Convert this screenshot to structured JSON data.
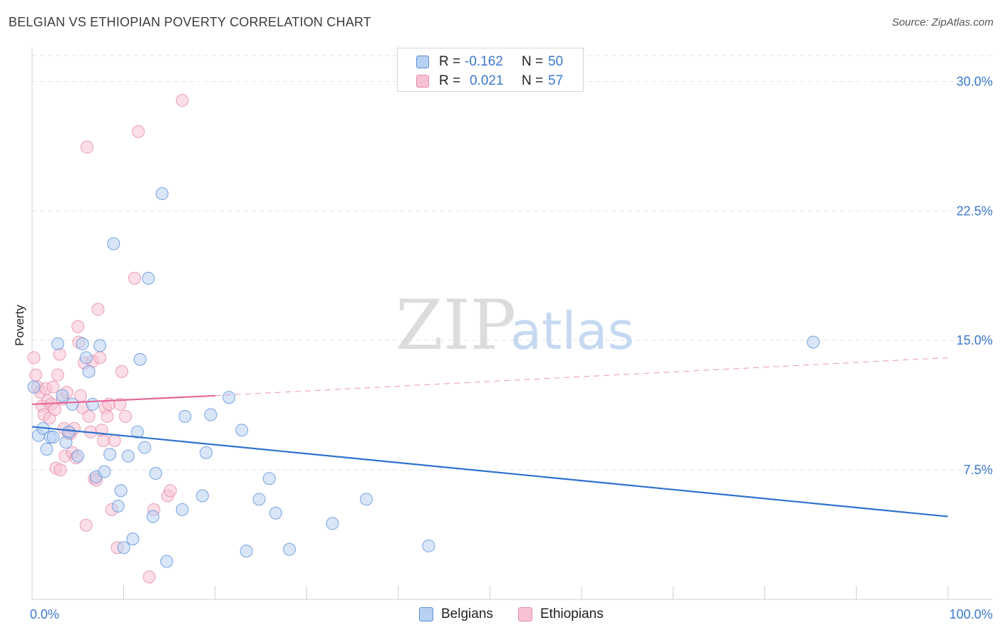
{
  "title": "BELGIAN VS ETHIOPIAN POVERTY CORRELATION CHART",
  "source": "Source: ZipAtlas.com",
  "watermark": {
    "zip": "ZIP",
    "atlas": "atlas"
  },
  "legend": {
    "r_label": "R =",
    "n_label": "N =",
    "belgians": {
      "r": "-0.162",
      "n": "50"
    },
    "ethiopians": {
      "r": "0.021",
      "n": "57"
    }
  },
  "bottom_legend": {
    "belgians": "Belgians",
    "ethiopians": "Ethiopians"
  },
  "colors": {
    "belgian_fill": "#b8d1f2",
    "belgian_stroke": "#5b8fd8",
    "belgian_line": "#2f72d0",
    "ethiopian_fill": "#f7c3d3",
    "ethiopian_stroke": "#e58aa8",
    "ethiopian_line": "#e4669a",
    "axis_text": "#3b78d0"
  },
  "chart_data": {
    "type": "scatter",
    "title": "BELGIAN VS ETHIOPIAN POVERTY CORRELATION CHART",
    "xlabel": "",
    "ylabel": "Poverty",
    "xlim": [
      0,
      100
    ],
    "ylim": [
      0,
      31.5
    ],
    "x_tick_labels": [
      "0.0%",
      "100.0%"
    ],
    "y_ticks": [
      7.5,
      15.0,
      22.5,
      30.0
    ],
    "y_tick_labels": [
      "7.5%",
      "15.0%",
      "22.5%",
      "30.0%"
    ],
    "series": [
      {
        "name": "Belgians",
        "points": [
          [
            0.2,
            12.3
          ],
          [
            0.7,
            9.5
          ],
          [
            1.2,
            9.9
          ],
          [
            1.6,
            8.7
          ],
          [
            2.0,
            9.4
          ],
          [
            2.3,
            9.4
          ],
          [
            2.8,
            14.8
          ],
          [
            3.3,
            11.8
          ],
          [
            3.7,
            9.1
          ],
          [
            4.0,
            9.7
          ],
          [
            4.4,
            11.3
          ],
          [
            5.0,
            8.3
          ],
          [
            5.5,
            14.8
          ],
          [
            5.9,
            14.0
          ],
          [
            6.2,
            13.2
          ],
          [
            6.6,
            11.3
          ],
          [
            7.0,
            7.1
          ],
          [
            7.4,
            14.7
          ],
          [
            7.9,
            7.4
          ],
          [
            8.5,
            8.4
          ],
          [
            8.9,
            20.6
          ],
          [
            9.4,
            5.4
          ],
          [
            9.7,
            6.3
          ],
          [
            10.0,
            3.0
          ],
          [
            10.5,
            8.3
          ],
          [
            11.0,
            3.5
          ],
          [
            11.5,
            9.7
          ],
          [
            11.8,
            13.9
          ],
          [
            12.3,
            8.8
          ],
          [
            12.7,
            18.6
          ],
          [
            13.2,
            4.8
          ],
          [
            13.5,
            7.3
          ],
          [
            14.2,
            23.5
          ],
          [
            14.7,
            2.2
          ],
          [
            16.4,
            5.2
          ],
          [
            16.7,
            10.6
          ],
          [
            18.6,
            6.0
          ],
          [
            19.0,
            8.5
          ],
          [
            19.5,
            10.7
          ],
          [
            21.5,
            11.7
          ],
          [
            22.9,
            9.8
          ],
          [
            23.4,
            2.8
          ],
          [
            24.8,
            5.8
          ],
          [
            25.9,
            7.0
          ],
          [
            26.6,
            5.0
          ],
          [
            28.1,
            2.9
          ],
          [
            32.8,
            4.4
          ],
          [
            36.5,
            5.8
          ],
          [
            43.3,
            3.1
          ],
          [
            85.3,
            14.9
          ]
        ]
      },
      {
        "name": "Ethiopians",
        "points": [
          [
            0.2,
            14.0
          ],
          [
            0.4,
            13.0
          ],
          [
            0.6,
            12.3
          ],
          [
            0.9,
            12.0
          ],
          [
            1.1,
            11.2
          ],
          [
            1.3,
            10.7
          ],
          [
            1.5,
            12.2
          ],
          [
            1.7,
            11.5
          ],
          [
            1.9,
            10.5
          ],
          [
            2.1,
            11.3
          ],
          [
            2.3,
            12.3
          ],
          [
            2.5,
            11.0
          ],
          [
            2.6,
            7.6
          ],
          [
            2.8,
            13.0
          ],
          [
            3.0,
            14.2
          ],
          [
            3.1,
            7.5
          ],
          [
            3.3,
            11.6
          ],
          [
            3.5,
            9.9
          ],
          [
            3.6,
            8.3
          ],
          [
            3.8,
            12.0
          ],
          [
            4.0,
            9.6
          ],
          [
            4.2,
            9.6
          ],
          [
            4.4,
            8.5
          ],
          [
            4.6,
            9.9
          ],
          [
            4.8,
            8.2
          ],
          [
            5.0,
            15.8
          ],
          [
            5.1,
            14.9
          ],
          [
            5.3,
            11.8
          ],
          [
            5.5,
            11.1
          ],
          [
            5.7,
            13.7
          ],
          [
            5.9,
            4.3
          ],
          [
            6.0,
            26.2
          ],
          [
            6.2,
            10.6
          ],
          [
            6.4,
            9.7
          ],
          [
            6.6,
            13.8
          ],
          [
            6.8,
            7.0
          ],
          [
            7.0,
            6.9
          ],
          [
            7.2,
            16.8
          ],
          [
            7.4,
            14.0
          ],
          [
            7.6,
            9.8
          ],
          [
            7.8,
            9.2
          ],
          [
            8.0,
            11.1
          ],
          [
            8.2,
            10.6
          ],
          [
            8.4,
            11.3
          ],
          [
            8.7,
            5.2
          ],
          [
            9.0,
            9.2
          ],
          [
            9.3,
            3.0
          ],
          [
            9.6,
            11.3
          ],
          [
            9.8,
            13.2
          ],
          [
            10.2,
            10.6
          ],
          [
            11.2,
            18.6
          ],
          [
            11.6,
            27.1
          ],
          [
            12.8,
            1.3
          ],
          [
            13.3,
            5.2
          ],
          [
            14.8,
            6.0
          ],
          [
            15.1,
            6.3
          ],
          [
            16.4,
            28.9
          ]
        ]
      }
    ],
    "trendlines": [
      {
        "name": "Belgians",
        "x": [
          0,
          100
        ],
        "y": [
          10.0,
          4.8
        ]
      },
      {
        "name": "Ethiopians",
        "x": [
          0,
          20
        ],
        "y": [
          11.3,
          11.8
        ],
        "dashed_extension_x": [
          20,
          100
        ],
        "dashed_extension_y": [
          11.8,
          14.0
        ]
      }
    ]
  }
}
